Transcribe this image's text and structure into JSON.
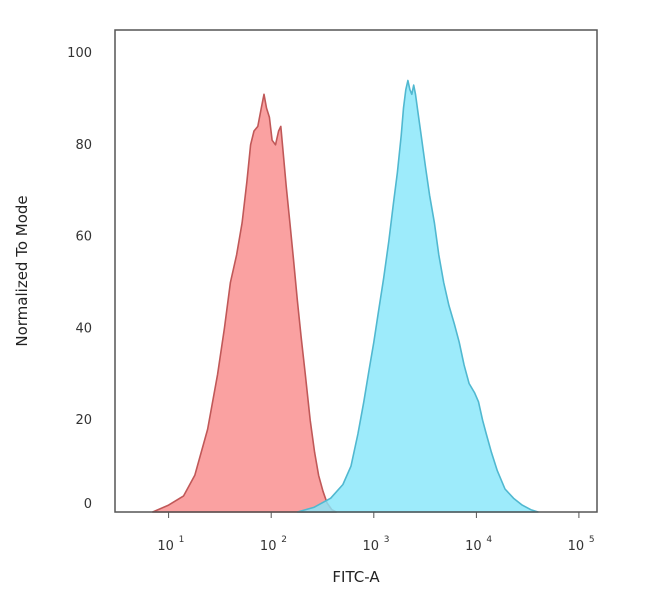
{
  "chart_data": {
    "type": "area",
    "title": "",
    "xlabel": "FITC-A",
    "ylabel": "Normalized To Mode",
    "xscale": "log",
    "xlim": [
      3,
      150000
    ],
    "ylim": [
      0,
      105
    ],
    "yticks": [
      "0",
      "20",
      "40",
      "60",
      "80",
      "100"
    ],
    "xticks": [
      {
        "base": "10",
        "exp": "1"
      },
      {
        "base": "10",
        "exp": "2"
      },
      {
        "base": "10",
        "exp": "3"
      },
      {
        "base": "10",
        "exp": "4"
      },
      {
        "base": "10",
        "exp": "5"
      }
    ],
    "grid": false,
    "series": [
      {
        "fill": "#f98c8c",
        "stroke": "#c05858",
        "points": [
          [
            7,
            0
          ],
          [
            10,
            1.5
          ],
          [
            14,
            3.5
          ],
          [
            18,
            8
          ],
          [
            24,
            18
          ],
          [
            30,
            30
          ],
          [
            35,
            40
          ],
          [
            40,
            50
          ],
          [
            46,
            56
          ],
          [
            52,
            63
          ],
          [
            58,
            72
          ],
          [
            63,
            80
          ],
          [
            68,
            83
          ],
          [
            74,
            84
          ],
          [
            80,
            88
          ],
          [
            85,
            91
          ],
          [
            90,
            88
          ],
          [
            96,
            86
          ],
          [
            102,
            81
          ],
          [
            110,
            80
          ],
          [
            118,
            83
          ],
          [
            124,
            84
          ],
          [
            130,
            79
          ],
          [
            140,
            71
          ],
          [
            152,
            63
          ],
          [
            165,
            55
          ],
          [
            180,
            46
          ],
          [
            196,
            38
          ],
          [
            215,
            30
          ],
          [
            240,
            20
          ],
          [
            265,
            13
          ],
          [
            290,
            8
          ],
          [
            320,
            4.5
          ],
          [
            350,
            2
          ],
          [
            390,
            0.5
          ],
          [
            430,
            0
          ]
        ]
      },
      {
        "fill": "#88e6fa",
        "stroke": "#50b8d0",
        "points": [
          [
            180,
            0
          ],
          [
            260,
            1
          ],
          [
            380,
            3
          ],
          [
            500,
            6
          ],
          [
            600,
            10
          ],
          [
            700,
            17
          ],
          [
            800,
            24
          ],
          [
            900,
            31
          ],
          [
            1000,
            37
          ],
          [
            1100,
            43
          ],
          [
            1250,
            51
          ],
          [
            1400,
            59
          ],
          [
            1550,
            67
          ],
          [
            1700,
            74
          ],
          [
            1850,
            82
          ],
          [
            1950,
            88
          ],
          [
            2050,
            92
          ],
          [
            2150,
            94
          ],
          [
            2250,
            92
          ],
          [
            2350,
            91
          ],
          [
            2450,
            93
          ],
          [
            2550,
            91
          ],
          [
            2700,
            87
          ],
          [
            2900,
            82
          ],
          [
            3200,
            75
          ],
          [
            3500,
            69
          ],
          [
            3900,
            63
          ],
          [
            4300,
            56
          ],
          [
            4800,
            50
          ],
          [
            5400,
            45
          ],
          [
            6100,
            41
          ],
          [
            6800,
            37
          ],
          [
            7600,
            32
          ],
          [
            8500,
            28
          ],
          [
            9600,
            26
          ],
          [
            10500,
            24
          ],
          [
            11500,
            20
          ],
          [
            12500,
            17
          ],
          [
            14000,
            13
          ],
          [
            16000,
            9
          ],
          [
            19000,
            5
          ],
          [
            23000,
            3
          ],
          [
            28000,
            1.5
          ],
          [
            34000,
            0.5
          ],
          [
            40000,
            0
          ]
        ]
      }
    ]
  }
}
